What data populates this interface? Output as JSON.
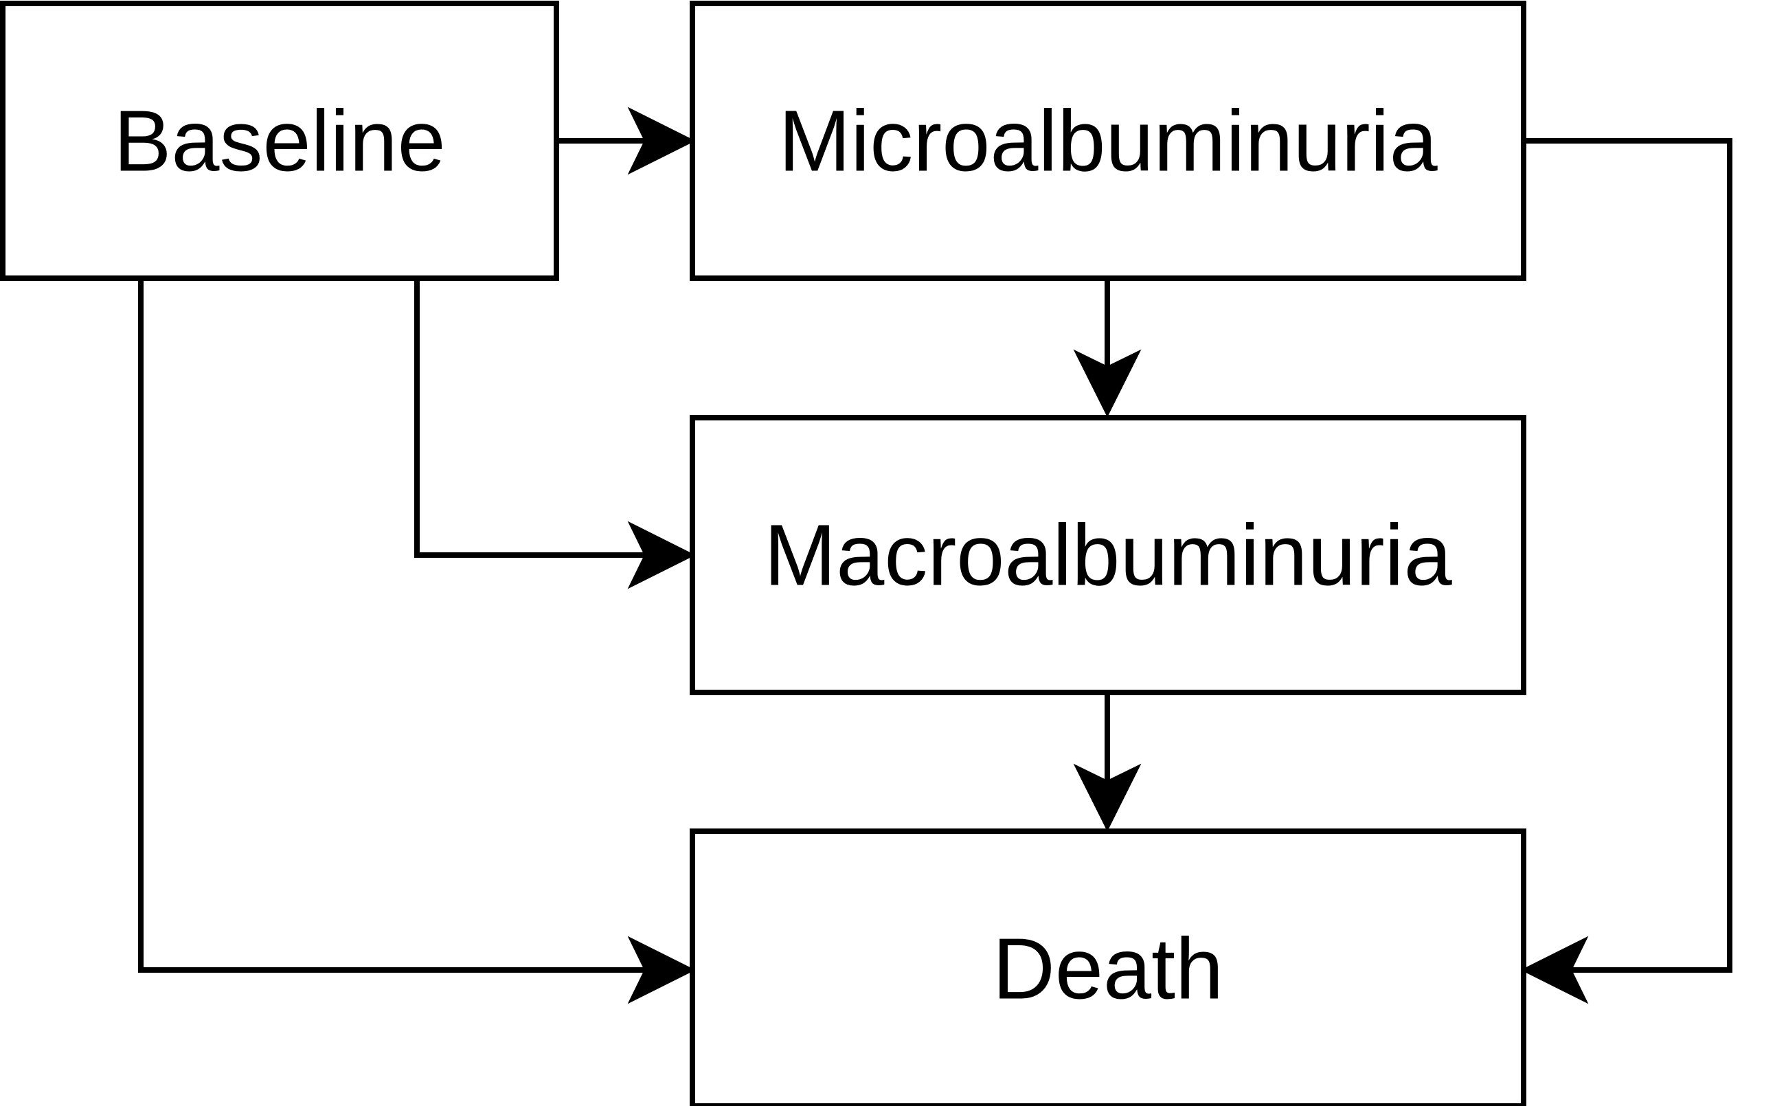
{
  "diagram": {
    "states": {
      "baseline": "Baseline",
      "microalbuminuria": "Microalbuminuria",
      "macroalbuminuria": "Macroalbuminuria",
      "death": "Death"
    },
    "transitions": [
      {
        "from": "Baseline",
        "to": "Microalbuminuria"
      },
      {
        "from": "Baseline",
        "to": "Macroalbuminuria"
      },
      {
        "from": "Baseline",
        "to": "Death"
      },
      {
        "from": "Microalbuminuria",
        "to": "Macroalbuminuria"
      },
      {
        "from": "Microalbuminuria",
        "to": "Death"
      },
      {
        "from": "Macroalbuminuria",
        "to": "Death"
      }
    ],
    "colors": {
      "stroke": "#000000",
      "fill": "#ffffff",
      "text": "#000000"
    }
  }
}
